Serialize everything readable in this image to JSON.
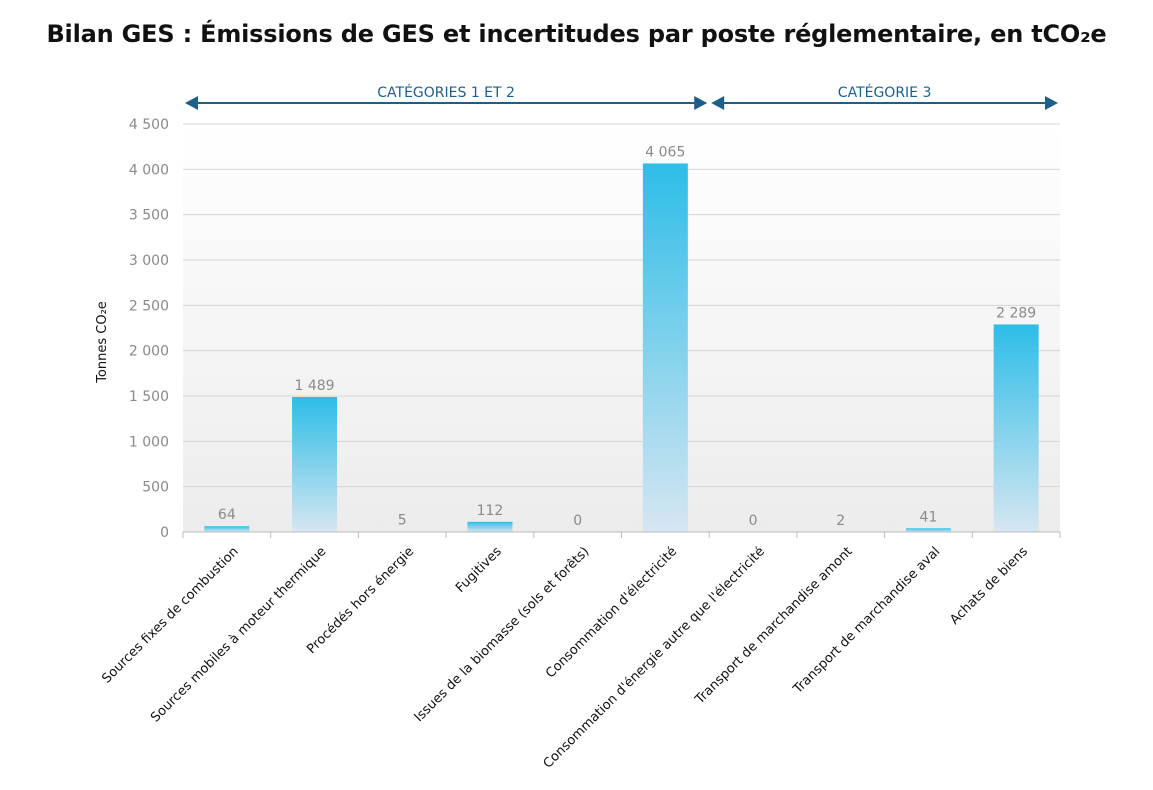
{
  "chart_data": {
    "type": "bar",
    "title": "Bilan GES : Émissions de GES et incertitudes par poste réglementaire, en tCO₂e",
    "xlabel": "",
    "ylabel": "Tonnes CO₂e",
    "ylim": [
      0,
      4500
    ],
    "yticks": [
      0,
      500,
      1000,
      1500,
      2000,
      2500,
      3000,
      3500,
      4000,
      4500
    ],
    "ytick_labels": [
      "0",
      "500",
      "1 000",
      "1 500",
      "2 000",
      "2 500",
      "3 000",
      "3 500",
      "4 000",
      "4 500"
    ],
    "grid": true,
    "legend": "none",
    "categories": [
      "Sources fixes de combustion",
      "Sources mobiles à moteur thermique",
      "Procédés hors énergie",
      "Fugitives",
      "Issues de la biomasse (sols et forêts)",
      "Consommation d'électricité",
      "Consommation d'énergie autre que l'électricité",
      "Transport de marchandise amont",
      "Transport de marchandise aval",
      "Achats de biens"
    ],
    "values": [
      64,
      1489,
      5,
      112,
      0,
      4065,
      0,
      2,
      41,
      2289
    ],
    "value_labels": [
      "64",
      "1 489",
      "5",
      "112",
      "0",
      "4 065",
      "0",
      "2",
      "41",
      "2 289"
    ],
    "groups": [
      {
        "label": "CATÉGORIES 1 ET 2",
        "categories": [
          0,
          5
        ]
      },
      {
        "label": "CATÉGORIE 3",
        "categories": [
          6,
          9
        ]
      }
    ],
    "colors": {
      "bar_top": "#2dbde8",
      "bar_bottom": "#d6e6f1",
      "arrow": "#1e5f8a",
      "grid": "#d5d5d5",
      "label": "#8a8a8a"
    }
  }
}
